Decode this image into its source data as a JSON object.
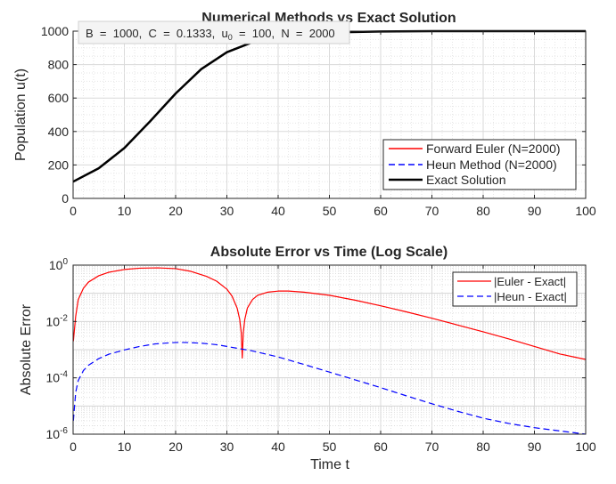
{
  "chart_data": [
    {
      "type": "line",
      "title": "Numerical Methods vs Exact Solution",
      "xlabel": "",
      "ylabel": "Population u(t)",
      "xlim": [
        0,
        100
      ],
      "ylim": [
        0,
        1000
      ],
      "xticks": [
        "0",
        "10",
        "20",
        "30",
        "40",
        "50",
        "60",
        "70",
        "80",
        "90",
        "100"
      ],
      "yticks": [
        "0",
        "200",
        "400",
        "600",
        "800",
        "1000"
      ],
      "grid": true,
      "legend_position": "bottom-right",
      "annotation": {
        "prefix": "B  =  1000,  C  =  0.1333,  u",
        "sub": "0",
        "suffix": "  =  100,  N  =  2000"
      },
      "x": [
        0,
        5,
        10,
        15,
        20,
        25,
        30,
        35,
        40,
        45,
        50,
        60,
        70,
        80,
        90,
        100
      ],
      "series": [
        {
          "name": "Forward Euler (N=2000)",
          "color": "#ff0000",
          "dash": "solid",
          "values": [
            100,
            180,
            301,
            460,
            627,
            773,
            874,
            934,
            966,
            983,
            992,
            998,
            1000,
            1000,
            1000,
            1000
          ]
        },
        {
          "name": "Heun Method (N=2000)",
          "color": "#0000ff",
          "dash": "dashed",
          "values": [
            100,
            180,
            301,
            460,
            627,
            773,
            874,
            934,
            966,
            983,
            992,
            998,
            1000,
            1000,
            1000,
            1000
          ]
        },
        {
          "name": "Exact Solution",
          "color": "#000000",
          "dash": "solid",
          "values": [
            100,
            180,
            301,
            460,
            627,
            773,
            874,
            934,
            966,
            983,
            992,
            998,
            1000,
            1000,
            1000,
            1000
          ]
        }
      ]
    },
    {
      "type": "line",
      "title": "Absolute Error vs Time (Log Scale)",
      "xlabel": "Time t",
      "ylabel": "Absolute Error",
      "xlim": [
        0,
        100
      ],
      "ylim": [
        1e-06,
        1
      ],
      "yscale": "log",
      "xticks": [
        "0",
        "10",
        "20",
        "30",
        "40",
        "50",
        "60",
        "70",
        "80",
        "90",
        "100"
      ],
      "yticks": [
        {
          "base": "10",
          "exp": "-6"
        },
        {
          "base": "10",
          "exp": "-4"
        },
        {
          "base": "10",
          "exp": "-2"
        },
        {
          "base": "10",
          "exp": "0"
        }
      ],
      "grid": true,
      "legend_position": "top-right",
      "series": [
        {
          "name": "|Euler - Exact|",
          "color": "#ff0000",
          "dash": "solid",
          "x": [
            0.05,
            0.5,
            1,
            2,
            3,
            5,
            7,
            10,
            13,
            16.5,
            20,
            23,
            26,
            28,
            30,
            31,
            32,
            32.5,
            32.8,
            33.0,
            33.2,
            33.5,
            34,
            35,
            36,
            38,
            40,
            42,
            45,
            50,
            55,
            60,
            65,
            70,
            75,
            80,
            85,
            90,
            95,
            100
          ],
          "values": [
            0.002,
            0.015,
            0.06,
            0.15,
            0.25,
            0.42,
            0.56,
            0.7,
            0.78,
            0.8,
            0.75,
            0.6,
            0.4,
            0.27,
            0.14,
            0.08,
            0.03,
            0.012,
            0.004,
            0.0005,
            0.004,
            0.012,
            0.03,
            0.06,
            0.085,
            0.11,
            0.12,
            0.12,
            0.11,
            0.085,
            0.057,
            0.036,
            0.022,
            0.013,
            0.0075,
            0.0043,
            0.0024,
            0.0013,
            0.0007,
            0.00045
          ]
        },
        {
          "name": "|Heun - Exact|",
          "color": "#0000ff",
          "dash": "dashed",
          "x": [
            0.05,
            0.5,
            1,
            2,
            3,
            5,
            7,
            10,
            13,
            16,
            18,
            20,
            22,
            25,
            28,
            30,
            35,
            40,
            45,
            50,
            55,
            60,
            65,
            70,
            75,
            80,
            85,
            90,
            95,
            100
          ],
          "values": [
            3e-06,
            3e-05,
            8e-05,
            0.00018,
            0.00028,
            0.00048,
            0.00069,
            0.00098,
            0.0013,
            0.0016,
            0.0017,
            0.0018,
            0.0018,
            0.0017,
            0.0015,
            0.0013,
            0.0009,
            0.00055,
            0.0003,
            0.00016,
            8.5e-05,
            4.5e-05,
            2.3e-05,
            1.2e-05,
            6.5e-06,
            3.7e-06,
            2.4e-06,
            1.7e-06,
            1.3e-06,
            1e-06
          ]
        }
      ]
    }
  ]
}
